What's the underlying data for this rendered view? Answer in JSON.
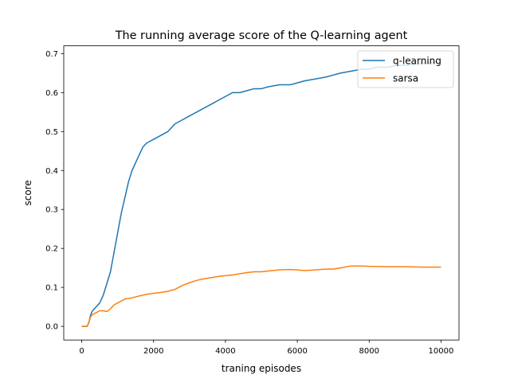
{
  "chart_data": {
    "type": "line",
    "title": "The running average score of the Q-learning agent",
    "xlabel": "traning episodes",
    "ylabel": "score",
    "xlim": [
      -500,
      10500
    ],
    "ylim": [
      -0.035,
      0.72
    ],
    "xticks": [
      0,
      2000,
      4000,
      6000,
      8000,
      10000
    ],
    "yticks": [
      0.0,
      0.1,
      0.2,
      0.3,
      0.4,
      0.5,
      0.6,
      0.7
    ],
    "xtick_labels": [
      "0",
      "2000",
      "4000",
      "6000",
      "8000",
      "10000"
    ],
    "ytick_labels": [
      "0.0",
      "0.1",
      "0.2",
      "0.3",
      "0.4",
      "0.5",
      "0.6",
      "0.7"
    ],
    "grid": false,
    "legend": "top-right",
    "series": [
      {
        "name": "q-learning",
        "color": "#1f77b4",
        "x": [
          0,
          150,
          200,
          250,
          300,
          400,
          500,
          600,
          700,
          800,
          900,
          1000,
          1100,
          1200,
          1300,
          1400,
          1500,
          1600,
          1700,
          1800,
          2000,
          2200,
          2400,
          2600,
          2800,
          3000,
          3200,
          3400,
          3600,
          3800,
          4000,
          4200,
          4400,
          4600,
          4800,
          5000,
          5200,
          5500,
          5800,
          6000,
          6200,
          6500,
          6800,
          7000,
          7200,
          7500,
          7800,
          8000,
          8200,
          8500,
          8800,
          9000,
          9200,
          9500,
          9800,
          10000
        ],
        "y": [
          0.0,
          0.0,
          0.01,
          0.03,
          0.04,
          0.05,
          0.06,
          0.08,
          0.11,
          0.14,
          0.19,
          0.24,
          0.29,
          0.33,
          0.37,
          0.4,
          0.42,
          0.44,
          0.46,
          0.47,
          0.48,
          0.49,
          0.5,
          0.52,
          0.53,
          0.54,
          0.55,
          0.56,
          0.57,
          0.58,
          0.59,
          0.6,
          0.6,
          0.605,
          0.61,
          0.61,
          0.615,
          0.62,
          0.62,
          0.625,
          0.63,
          0.635,
          0.64,
          0.645,
          0.65,
          0.655,
          0.66,
          0.66,
          0.665,
          0.665,
          0.67,
          0.67,
          0.672,
          0.675,
          0.678,
          0.68
        ]
      },
      {
        "name": "sarsa",
        "color": "#ff7f0e",
        "x": [
          0,
          150,
          200,
          250,
          300,
          400,
          500,
          600,
          700,
          800,
          900,
          1000,
          1100,
          1200,
          1400,
          1600,
          1800,
          2000,
          2200,
          2400,
          2600,
          2800,
          3000,
          3200,
          3400,
          3600,
          3800,
          4000,
          4200,
          4400,
          4600,
          4800,
          5000,
          5200,
          5500,
          5800,
          6000,
          6200,
          6500,
          6800,
          7000,
          7200,
          7500,
          7800,
          8000,
          8500,
          9000,
          9500,
          10000
        ],
        "y": [
          0.0,
          0.0,
          0.01,
          0.025,
          0.03,
          0.035,
          0.04,
          0.04,
          0.038,
          0.045,
          0.055,
          0.06,
          0.065,
          0.07,
          0.073,
          0.078,
          0.082,
          0.085,
          0.087,
          0.09,
          0.095,
          0.105,
          0.112,
          0.118,
          0.122,
          0.125,
          0.128,
          0.13,
          0.132,
          0.135,
          0.138,
          0.14,
          0.14,
          0.142,
          0.145,
          0.146,
          0.145,
          0.143,
          0.145,
          0.147,
          0.147,
          0.15,
          0.155,
          0.155,
          0.154,
          0.153,
          0.153,
          0.152,
          0.152
        ]
      }
    ]
  }
}
